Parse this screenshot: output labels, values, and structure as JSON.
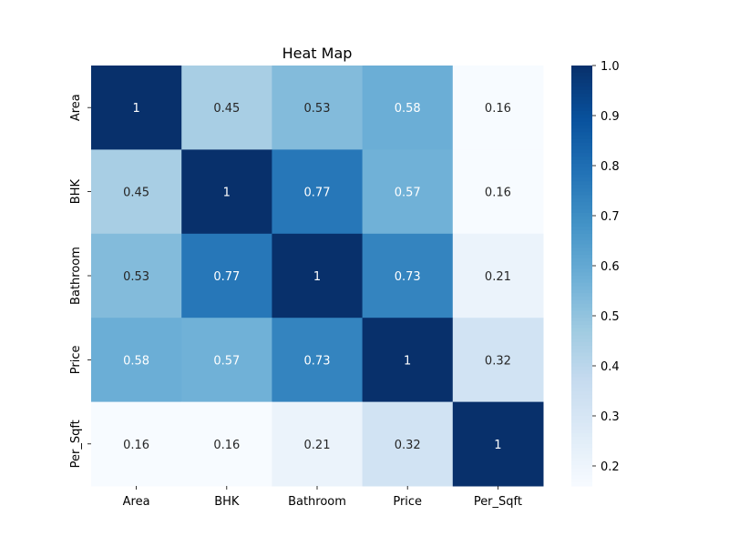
{
  "chart_data": {
    "type": "heatmap",
    "title": "Heat Map",
    "xlabel": "",
    "ylabel": "",
    "x_categories": [
      "Area",
      "BHK",
      "Bathroom",
      "Price",
      "Per_Sqft"
    ],
    "y_categories": [
      "Area",
      "BHK",
      "Bathroom",
      "Price",
      "Per_Sqft"
    ],
    "values": [
      [
        1,
        0.45,
        0.53,
        0.58,
        0.16
      ],
      [
        0.45,
        1,
        0.77,
        0.57,
        0.16
      ],
      [
        0.53,
        0.77,
        1,
        0.73,
        0.21
      ],
      [
        0.58,
        0.57,
        0.73,
        1,
        0.32
      ],
      [
        0.16,
        0.16,
        0.21,
        0.32,
        1
      ]
    ],
    "annotations": [
      [
        "1",
        "0.45",
        "0.53",
        "0.58",
        "0.16"
      ],
      [
        "0.45",
        "1",
        "0.77",
        "0.57",
        "0.16"
      ],
      [
        "0.53",
        "0.77",
        "1",
        "0.73",
        "0.21"
      ],
      [
        "0.58",
        "0.57",
        "0.73",
        "1",
        "0.32"
      ],
      [
        "0.16",
        "0.16",
        "0.21",
        "0.32",
        "1"
      ]
    ],
    "colormap": "Blues",
    "colorbar": {
      "vmin": 0.16,
      "vmax": 1.0,
      "ticks": [
        0.2,
        0.3,
        0.4,
        0.5,
        0.6,
        0.7,
        0.8,
        0.9,
        1.0
      ],
      "tick_labels": [
        "0.2",
        "0.3",
        "0.4",
        "0.5",
        "0.6",
        "0.7",
        "0.8",
        "0.9",
        "1.0"
      ]
    },
    "colors": {
      "low": "#f7fbff",
      "high": "#08306b",
      "text_dark": "#262626",
      "text_light": "#ffffff"
    },
    "grid": false,
    "legend": "right-colorbar"
  }
}
